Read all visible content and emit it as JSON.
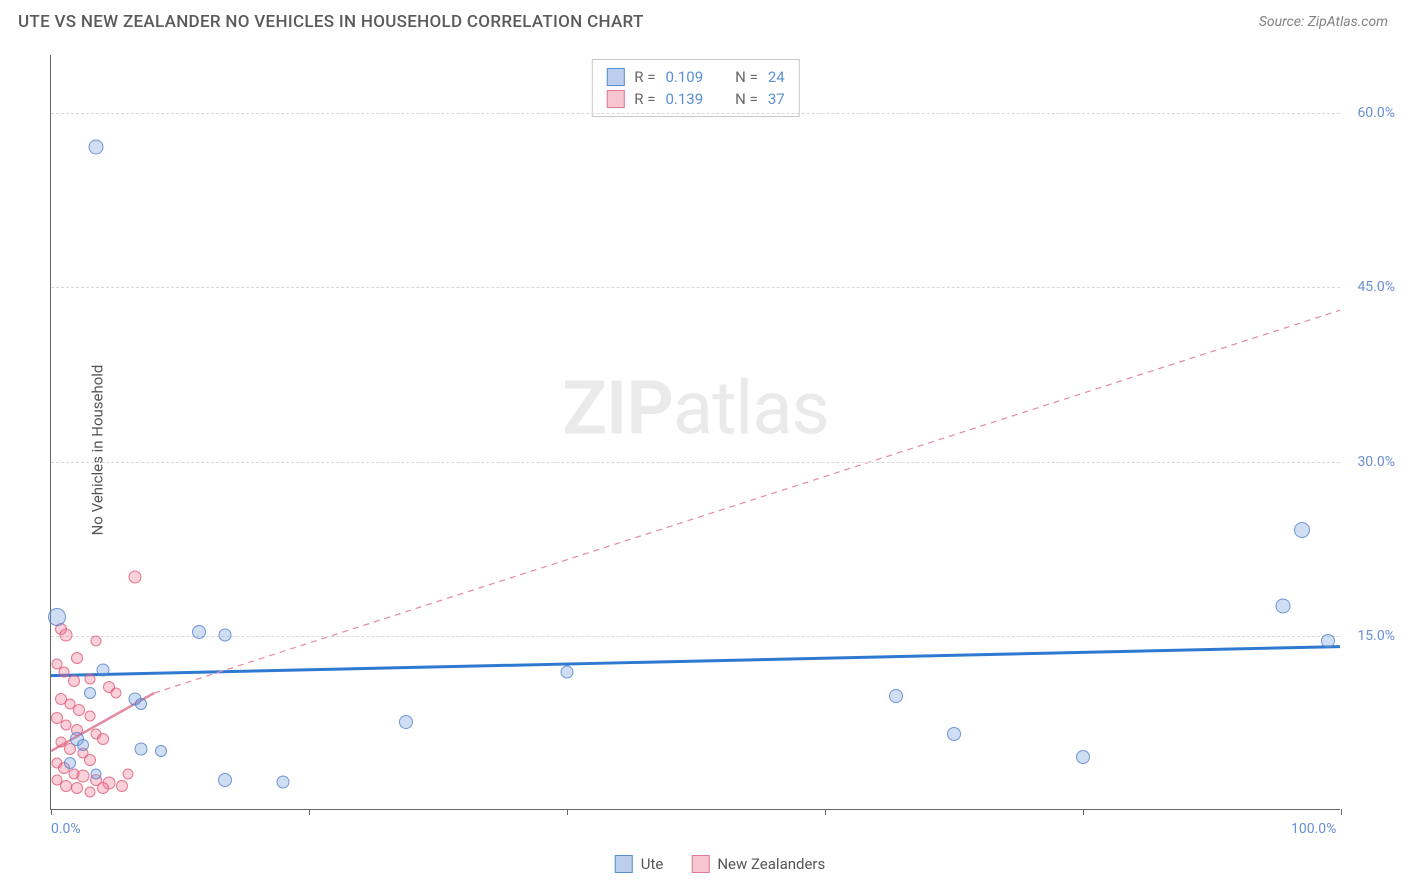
{
  "header": {
    "title": "UTE VS NEW ZEALANDER NO VEHICLES IN HOUSEHOLD CORRELATION CHART",
    "source": "Source: ZipAtlas.com"
  },
  "chart": {
    "type": "scatter",
    "y_axis_title": "No Vehicles in Household",
    "watermark_zip": "ZIP",
    "watermark_atlas": "atlas",
    "xlim": [
      0,
      100
    ],
    "ylim": [
      0,
      65
    ],
    "x_ticks": [
      0,
      20,
      40,
      60,
      80,
      100
    ],
    "y_gridlines": [
      15,
      30,
      45,
      60
    ],
    "y_labels": [
      {
        "v": 15,
        "t": "15.0%"
      },
      {
        "v": 30,
        "t": "30.0%"
      },
      {
        "v": 45,
        "t": "45.0%"
      },
      {
        "v": 60,
        "t": "60.0%"
      }
    ],
    "x_labels": [
      {
        "v": 0,
        "t": "0.0%"
      },
      {
        "v": 100,
        "t": "100.0%"
      }
    ],
    "legend_stats": [
      {
        "color": "blue",
        "r_label": "R =",
        "r_val": "0.109",
        "n_label": "N =",
        "n_val": "24"
      },
      {
        "color": "pink",
        "r_label": "R =",
        "r_val": "0.139",
        "n_label": "N =",
        "n_val": "37"
      }
    ],
    "bottom_legend": [
      {
        "color": "blue",
        "label": "Ute"
      },
      {
        "color": "pink",
        "label": "New Zealanders"
      }
    ],
    "colors": {
      "blue_fill": "rgba(120,160,220,0.35)",
      "blue_stroke": "rgba(70,120,200,0.7)",
      "pink_fill": "rgba(240,120,150,0.35)",
      "pink_stroke": "rgba(220,80,110,0.7)",
      "blue_line": "#2f7ad1",
      "pink_line": "#e58aa0",
      "grid": "#d8d8d8",
      "axis": "#666666",
      "label_color": "#6b8fd4",
      "background": "#ffffff"
    },
    "trend_lines": {
      "blue": {
        "x1": 0,
        "y1": 11.5,
        "x2": 100,
        "y2": 14.0,
        "width": 3,
        "dash": "none"
      },
      "pink_solid": {
        "x1": 0,
        "y1": 5.0,
        "x2": 8,
        "y2": 10.0,
        "width": 2.5,
        "dash": "none"
      },
      "pink_dash": {
        "x1": 8,
        "y1": 10.0,
        "x2": 100,
        "y2": 43.0,
        "width": 1.2,
        "dash": "6,5"
      }
    },
    "marker_base_size": 13,
    "series_blue": [
      {
        "x": 3.5,
        "y": 57.0,
        "s": 15
      },
      {
        "x": 0.5,
        "y": 16.5,
        "s": 18
      },
      {
        "x": 11.5,
        "y": 15.2,
        "s": 14
      },
      {
        "x": 13.5,
        "y": 15.0,
        "s": 13
      },
      {
        "x": 4.0,
        "y": 12.0,
        "s": 13
      },
      {
        "x": 3.0,
        "y": 10.0,
        "s": 12
      },
      {
        "x": 6.5,
        "y": 9.5,
        "s": 13
      },
      {
        "x": 7.0,
        "y": 9.0,
        "s": 12
      },
      {
        "x": 2.0,
        "y": 6.0,
        "s": 14
      },
      {
        "x": 2.5,
        "y": 5.5,
        "s": 12
      },
      {
        "x": 7.0,
        "y": 5.2,
        "s": 13
      },
      {
        "x": 8.5,
        "y": 5.0,
        "s": 12
      },
      {
        "x": 13.5,
        "y": 2.5,
        "s": 14
      },
      {
        "x": 18.0,
        "y": 2.3,
        "s": 13
      },
      {
        "x": 1.5,
        "y": 4.0,
        "s": 12
      },
      {
        "x": 3.5,
        "y": 3.0,
        "s": 11
      },
      {
        "x": 27.5,
        "y": 7.5,
        "s": 14
      },
      {
        "x": 40.0,
        "y": 11.8,
        "s": 13
      },
      {
        "x": 65.5,
        "y": 9.7,
        "s": 14
      },
      {
        "x": 70.0,
        "y": 6.5,
        "s": 14
      },
      {
        "x": 80.0,
        "y": 4.5,
        "s": 14
      },
      {
        "x": 97.0,
        "y": 24.0,
        "s": 16
      },
      {
        "x": 95.5,
        "y": 17.5,
        "s": 15
      },
      {
        "x": 99.0,
        "y": 14.5,
        "s": 14
      }
    ],
    "series_pink": [
      {
        "x": 0.8,
        "y": 15.5,
        "s": 12
      },
      {
        "x": 1.2,
        "y": 15.0,
        "s": 13
      },
      {
        "x": 6.5,
        "y": 20.0,
        "s": 13
      },
      {
        "x": 3.5,
        "y": 14.5,
        "s": 11
      },
      {
        "x": 2.0,
        "y": 13.0,
        "s": 12
      },
      {
        "x": 0.5,
        "y": 12.5,
        "s": 11
      },
      {
        "x": 1.0,
        "y": 11.8,
        "s": 11
      },
      {
        "x": 1.8,
        "y": 11.0,
        "s": 12
      },
      {
        "x": 3.0,
        "y": 11.2,
        "s": 11
      },
      {
        "x": 4.5,
        "y": 10.5,
        "s": 12
      },
      {
        "x": 5.0,
        "y": 10.0,
        "s": 11
      },
      {
        "x": 0.8,
        "y": 9.5,
        "s": 12
      },
      {
        "x": 1.5,
        "y": 9.0,
        "s": 11
      },
      {
        "x": 2.2,
        "y": 8.5,
        "s": 12
      },
      {
        "x": 3.0,
        "y": 8.0,
        "s": 11
      },
      {
        "x": 0.5,
        "y": 7.8,
        "s": 12
      },
      {
        "x": 1.2,
        "y": 7.2,
        "s": 11
      },
      {
        "x": 2.0,
        "y": 6.8,
        "s": 12
      },
      {
        "x": 3.5,
        "y": 6.5,
        "s": 11
      },
      {
        "x": 4.0,
        "y": 6.0,
        "s": 12
      },
      {
        "x": 0.8,
        "y": 5.8,
        "s": 11
      },
      {
        "x": 1.5,
        "y": 5.2,
        "s": 12
      },
      {
        "x": 2.5,
        "y": 4.8,
        "s": 11
      },
      {
        "x": 3.0,
        "y": 4.2,
        "s": 12
      },
      {
        "x": 0.5,
        "y": 4.0,
        "s": 11
      },
      {
        "x": 1.0,
        "y": 3.5,
        "s": 12
      },
      {
        "x": 1.8,
        "y": 3.0,
        "s": 11
      },
      {
        "x": 2.5,
        "y": 2.8,
        "s": 13
      },
      {
        "x": 3.5,
        "y": 2.5,
        "s": 12
      },
      {
        "x": 4.5,
        "y": 2.2,
        "s": 13
      },
      {
        "x": 5.5,
        "y": 2.0,
        "s": 12
      },
      {
        "x": 0.5,
        "y": 2.5,
        "s": 11
      },
      {
        "x": 1.2,
        "y": 2.0,
        "s": 12
      },
      {
        "x": 6.0,
        "y": 3.0,
        "s": 11
      },
      {
        "x": 2.0,
        "y": 1.8,
        "s": 12
      },
      {
        "x": 3.0,
        "y": 1.5,
        "s": 11
      },
      {
        "x": 4.0,
        "y": 1.8,
        "s": 12
      }
    ]
  }
}
